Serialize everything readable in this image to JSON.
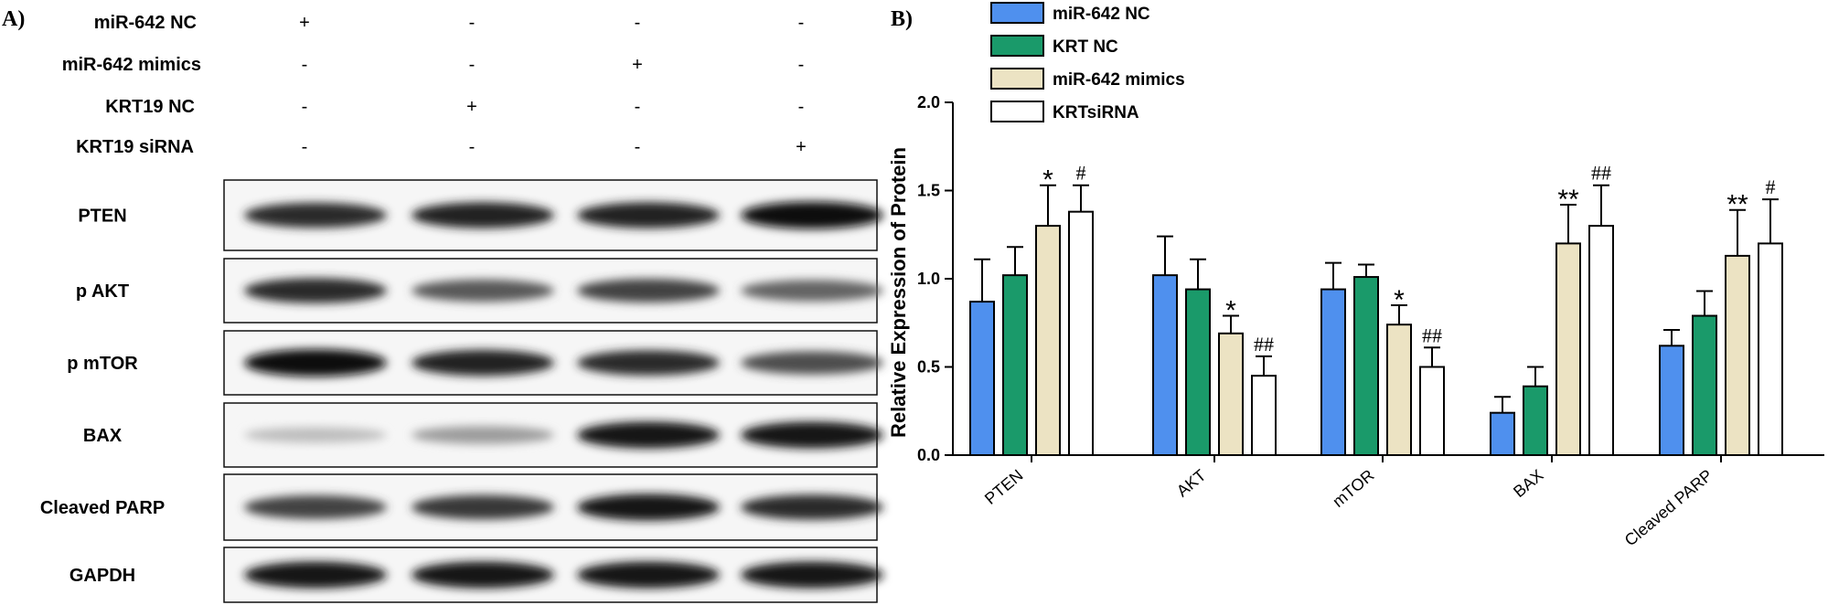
{
  "panel_a": {
    "label": "A)",
    "conditions": [
      {
        "name": "miR-642 NC",
        "signs": [
          "+",
          "-",
          "-",
          "-"
        ]
      },
      {
        "name": "miR-642 mimics",
        "signs": [
          "-",
          "-",
          "+",
          "-"
        ]
      },
      {
        "name": "KRT19 NC",
        "signs": [
          "-",
          "+",
          "-",
          "-"
        ]
      },
      {
        "name": "KRT19 siRNA",
        "signs": [
          "-",
          "-",
          "-",
          "+"
        ]
      }
    ],
    "blots": [
      {
        "label": "PTEN",
        "intensity": [
          0.85,
          0.9,
          0.9,
          1.0
        ]
      },
      {
        "label": "p AKT",
        "intensity": [
          0.85,
          0.65,
          0.75,
          0.6
        ]
      },
      {
        "label": "p mTOR",
        "intensity": [
          1.0,
          0.9,
          0.85,
          0.7
        ]
      },
      {
        "label": "BAX",
        "intensity": [
          0.2,
          0.35,
          0.95,
          0.95
        ]
      },
      {
        "label": "Cleaved PARP",
        "intensity": [
          0.75,
          0.8,
          0.95,
          0.85
        ]
      },
      {
        "label": "GAPDH",
        "intensity": [
          0.95,
          0.95,
          0.95,
          0.95
        ]
      }
    ]
  },
  "chart_data": {
    "type": "bar",
    "panel_label": "B)",
    "ylabel": "Relative Expression of Protein",
    "xlabel": "",
    "ylim": [
      0,
      2.0
    ],
    "yticks": [
      "0.0",
      "0.5",
      "1.0",
      "1.5",
      "2.0"
    ],
    "categories": [
      "PTEN",
      "AKT",
      "mTOR",
      "BAX",
      "Cleaved PARP"
    ],
    "legend_placement": "top",
    "series": [
      {
        "name": "miR-642 NC",
        "color": "#4f90ee",
        "values": [
          0.87,
          1.02,
          0.94,
          0.24,
          0.62
        ],
        "errors": [
          0.24,
          0.22,
          0.15,
          0.09,
          0.09
        ],
        "marks": [
          "",
          "",
          "",
          "",
          ""
        ]
      },
      {
        "name": "KRT NC",
        "color": "#1a9a6a",
        "values": [
          1.02,
          0.94,
          1.01,
          0.39,
          0.79
        ],
        "errors": [
          0.16,
          0.17,
          0.07,
          0.11,
          0.14
        ],
        "marks": [
          "",
          "",
          "",
          "",
          ""
        ]
      },
      {
        "name": "miR-642 mimics",
        "color": "#ece3c3",
        "values": [
          1.3,
          0.69,
          0.74,
          1.2,
          1.13
        ],
        "errors": [
          0.23,
          0.1,
          0.11,
          0.22,
          0.26
        ],
        "marks": [
          "*",
          "*",
          "*",
          "**",
          "**"
        ]
      },
      {
        "name": "KRTsiRNA",
        "color": "#ffffff",
        "values": [
          1.38,
          0.45,
          0.5,
          1.3,
          1.2
        ],
        "errors": [
          0.15,
          0.11,
          0.11,
          0.23,
          0.25
        ],
        "marks": [
          "#",
          "##",
          "##",
          "##",
          "#"
        ]
      }
    ]
  }
}
